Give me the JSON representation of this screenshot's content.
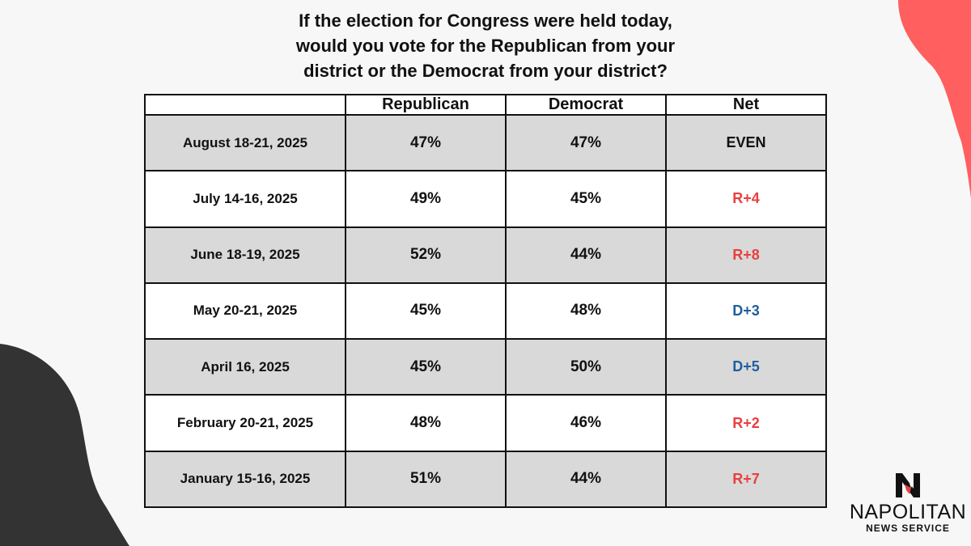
{
  "title_lines": [
    "If the election for Congress were held today,",
    "would you vote for the Republican from your",
    "district or the Democrat from your district?"
  ],
  "colors": {
    "republican_net": "#e8403f",
    "democrat_net": "#1f5e9e",
    "even_net": "#111111",
    "shaded_row": "#d9d9d9",
    "accent_blob": "#ff5f5f",
    "dark_blob": "#333333"
  },
  "logo": {
    "icon": "napolitan-n-eagle-logo",
    "name": "NAPOLITAN",
    "subtitle": "NEWS SERVICE"
  },
  "chart_data": {
    "type": "table",
    "columns": [
      "",
      "Republican",
      "Democrat",
      "Net"
    ],
    "rows": [
      {
        "date": "August 18-21, 2025",
        "republican": "47%",
        "democrat": "47%",
        "net": "EVEN",
        "lean": "even"
      },
      {
        "date": "July 14-16, 2025",
        "republican": "49%",
        "democrat": "45%",
        "net": "R+4",
        "lean": "R"
      },
      {
        "date": "June 18-19, 2025",
        "republican": "52%",
        "democrat": "44%",
        "net": "R+8",
        "lean": "R"
      },
      {
        "date": "May 20-21, 2025",
        "republican": "45%",
        "democrat": "48%",
        "net": "D+3",
        "lean": "D"
      },
      {
        "date": "April 16, 2025",
        "republican": "45%",
        "democrat": "50%",
        "net": "D+5",
        "lean": "D"
      },
      {
        "date": "February 20-21, 2025",
        "republican": "48%",
        "democrat": "46%",
        "net": "R+2",
        "lean": "R"
      },
      {
        "date": "January 15-16, 2025",
        "republican": "51%",
        "democrat": "44%",
        "net": "R+7",
        "lean": "R"
      }
    ]
  }
}
